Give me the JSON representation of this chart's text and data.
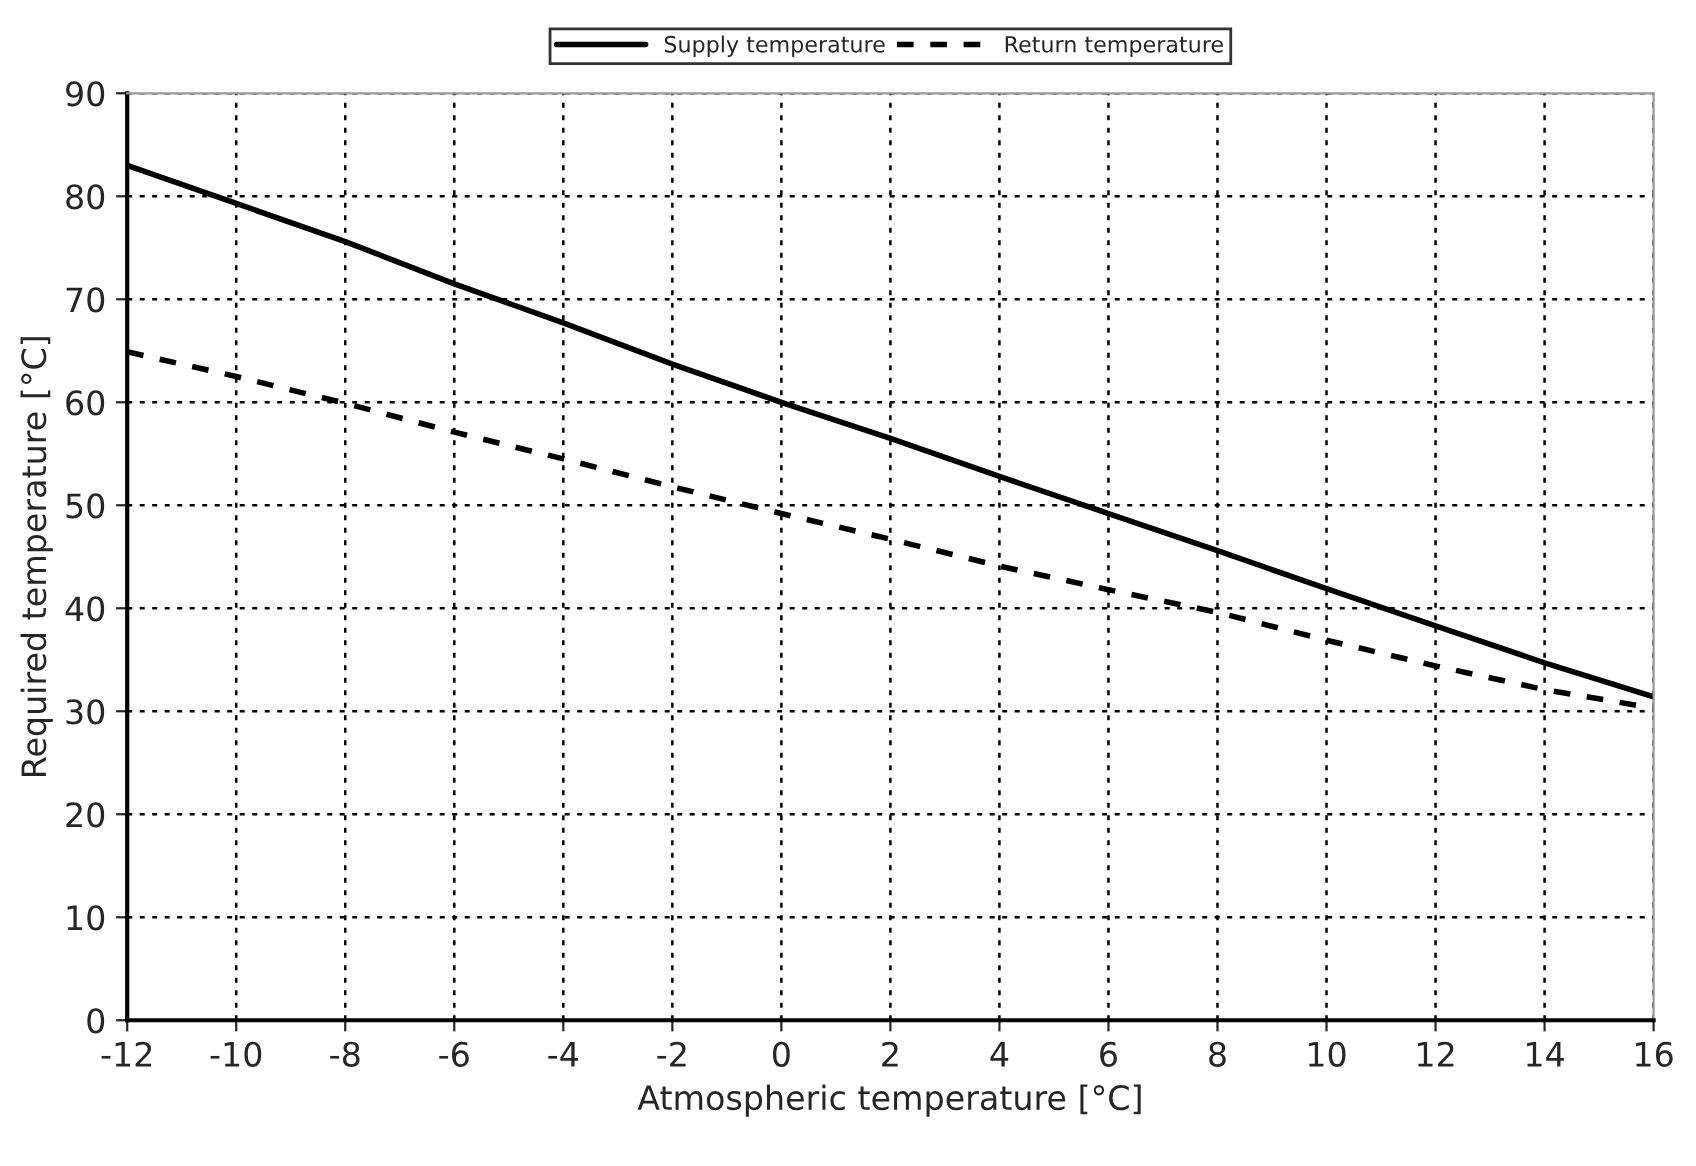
{
  "chart_data": {
    "type": "line",
    "xlabel": "Atmospheric temperature [°C]",
    "ylabel": "Required temperature [°C]",
    "x": [
      -12,
      -10,
      -8,
      -6,
      -4,
      -2,
      0,
      2,
      4,
      6,
      8,
      10,
      12,
      14,
      16
    ],
    "series": [
      {
        "name": "Supply temperature",
        "color": "#000000",
        "line_style": "solid",
        "values": [
          83,
          79.3,
          75.6,
          71.5,
          67.7,
          63.7,
          60,
          56.5,
          52.8,
          49.2,
          45.6,
          41.9,
          38.3,
          34.7,
          31.4
        ]
      },
      {
        "name": "Return temperature",
        "color": "#000000",
        "line_style": "dashed",
        "values": [
          64.9,
          62.5,
          59.9,
          57.1,
          54.5,
          51.8,
          49.2,
          46.7,
          44.1,
          41.8,
          39.6,
          36.9,
          34.4,
          32.1,
          30.3
        ]
      }
    ],
    "xlim": [
      -12,
      16
    ],
    "xticks": [
      -12,
      -10,
      -8,
      -6,
      -4,
      -2,
      0,
      2,
      4,
      6,
      8,
      10,
      12,
      14,
      16
    ],
    "ylim": [
      0,
      90
    ],
    "yticks": [
      0,
      10,
      20,
      30,
      40,
      50,
      60,
      70,
      80,
      90
    ],
    "grid": true,
    "legend": "top",
    "marker": "none"
  }
}
